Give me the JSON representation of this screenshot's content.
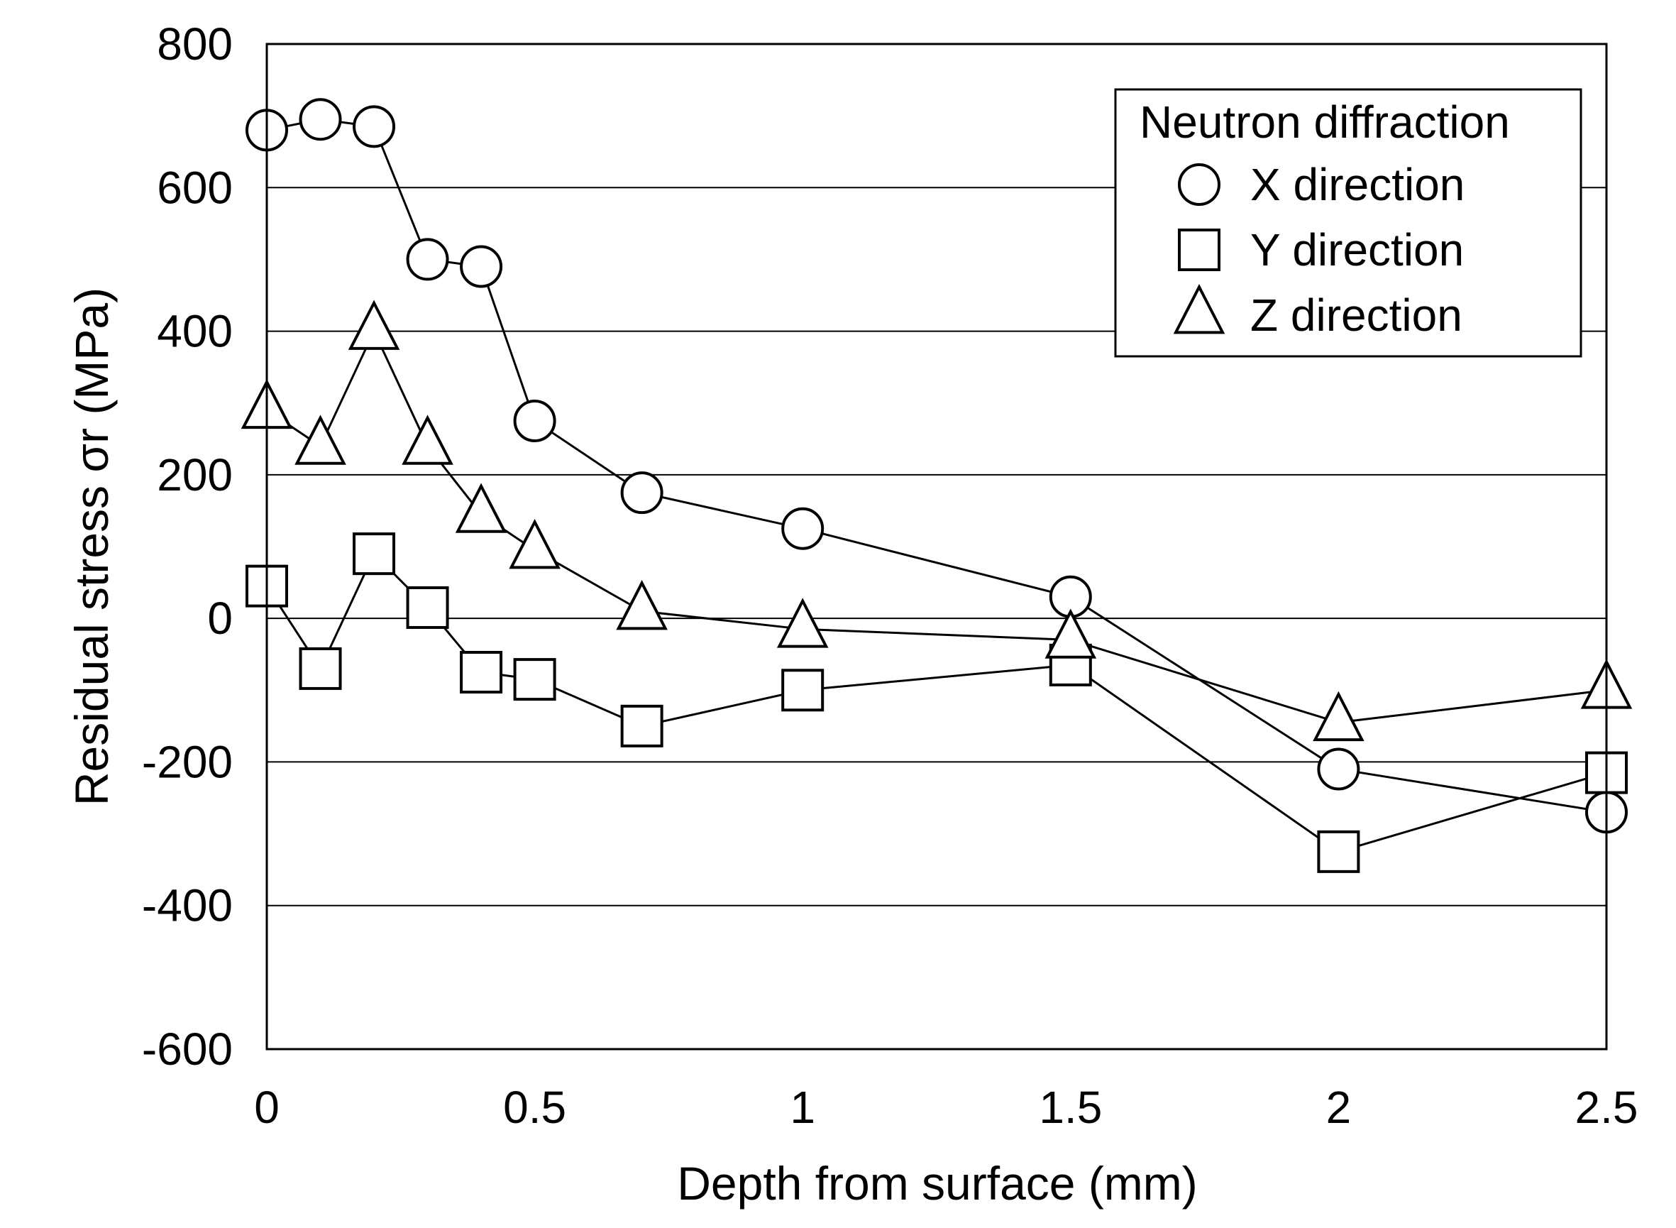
{
  "chart_data": {
    "type": "line",
    "title": "",
    "xlabel": "Depth from surface (mm)",
    "ylabel": "Residual stress σr (MPa)",
    "xlim": [
      0,
      2.5
    ],
    "ylim": [
      -600,
      800
    ],
    "xticks": [
      0,
      0.5,
      1,
      1.5,
      2,
      2.5
    ],
    "xtick_labels": [
      "0",
      "0.5",
      "1",
      "1.5",
      "2",
      "2.5"
    ],
    "yticks": [
      -600,
      -400,
      -200,
      0,
      200,
      400,
      600,
      800
    ],
    "ytick_labels": [
      "-600",
      "-400",
      "-200",
      "0",
      "200",
      "400",
      "600",
      "800"
    ],
    "grid": "horizontal",
    "legend": {
      "title": "Neutron diffraction",
      "position": "top-right"
    },
    "series": [
      {
        "name": "X direction",
        "marker": "circle",
        "x": [
          0,
          0.1,
          0.2,
          0.3,
          0.4,
          0.5,
          0.7,
          1,
          1.5,
          2,
          2.5
        ],
        "y": [
          680,
          695,
          685,
          500,
          490,
          275,
          175,
          125,
          30,
          -210,
          -270
        ]
      },
      {
        "name": "Y direction",
        "marker": "square",
        "x": [
          0,
          0.1,
          0.2,
          0.3,
          0.4,
          0.5,
          0.7,
          1,
          1.5,
          2,
          2.5
        ],
        "y": [
          45,
          -70,
          90,
          15,
          -75,
          -85,
          -150,
          -100,
          -65,
          -325,
          -215
        ]
      },
      {
        "name": "Z direction",
        "marker": "triangle",
        "x": [
          0,
          0.1,
          0.2,
          0.3,
          0.4,
          0.5,
          0.7,
          1,
          1.5,
          2,
          2.5
        ],
        "y": [
          290,
          240,
          400,
          240,
          145,
          95,
          10,
          -15,
          -30,
          -145,
          -100
        ]
      }
    ],
    "colors": {
      "line": "#000000",
      "marker_fill": "#ffffff",
      "grid": "#000000",
      "background": "#ffffff"
    }
  }
}
